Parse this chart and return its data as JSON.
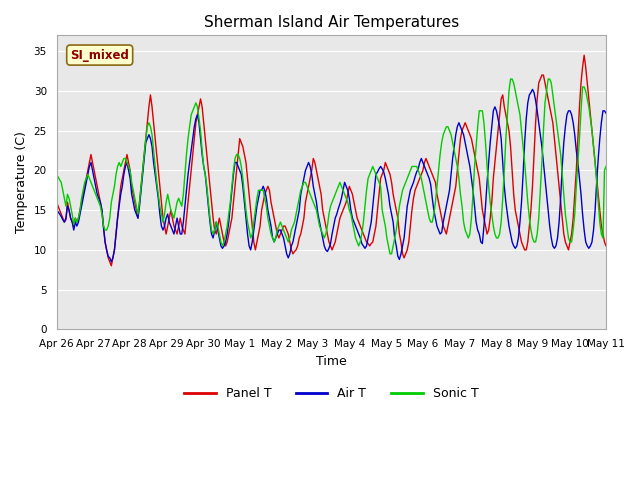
{
  "title": "Sherman Island Air Temperatures",
  "xlabel": "Time",
  "ylabel": "Temperature (C)",
  "ylim": [
    0,
    37
  ],
  "yticks": [
    0,
    5,
    10,
    15,
    20,
    25,
    30,
    35
  ],
  "x_labels": [
    "Apr 26",
    "Apr 27",
    "Apr 28",
    "Apr 29",
    "Apr 30",
    "May 1",
    "May 2",
    "May 3",
    "May 4",
    "May 5",
    "May 6",
    "May 7",
    "May 8",
    "May 9",
    "May 10",
    "May 11"
  ],
  "label_box_text": "SI_mixed",
  "legend_entries": [
    "Panel T",
    "Air T",
    "Sonic T"
  ],
  "colors": {
    "panel_t": "#dd0000",
    "air_t": "#0000cc",
    "sonic_t": "#00cc00",
    "axes_bg": "#e8e8e8",
    "fig_bg": "#ffffff",
    "grid": "#ffffff"
  },
  "panel_t_data": [
    16,
    15.5,
    15,
    14.5,
    14,
    13.5,
    13.8,
    16,
    15,
    14,
    13.5,
    13,
    14,
    13.5,
    14,
    15,
    16,
    17,
    18,
    19,
    20,
    21,
    22,
    21,
    20,
    19,
    18,
    17,
    16,
    15,
    13,
    11,
    10,
    9,
    8.5,
    8,
    9,
    10,
    12,
    14,
    16,
    18,
    19,
    20,
    21,
    22,
    21,
    20,
    18,
    17,
    16,
    15,
    14,
    16,
    18,
    20,
    22,
    24,
    26,
    28,
    29.5,
    28,
    26,
    24,
    22,
    20,
    18,
    16,
    14,
    13,
    12,
    13,
    14,
    15,
    14,
    13,
    12.5,
    12,
    13,
    14,
    13,
    12.5,
    12,
    14,
    16,
    18,
    20,
    22,
    24,
    26,
    27,
    28,
    29,
    28,
    26,
    24,
    22,
    20,
    18,
    16,
    14,
    12.5,
    12,
    13,
    14,
    13,
    12,
    11,
    10.5,
    11,
    12,
    13,
    14,
    16,
    18,
    20,
    22,
    24,
    23.5,
    23,
    22,
    21,
    19,
    17,
    15,
    13,
    11,
    10,
    11,
    12,
    13,
    15,
    16,
    17,
    17.5,
    18,
    17.5,
    16,
    15,
    14,
    13,
    12,
    11.5,
    12,
    12.5,
    13,
    13,
    12.5,
    12,
    11,
    10,
    9.5,
    9.8,
    10,
    10.5,
    11.5,
    12,
    13,
    14,
    16,
    17,
    18,
    19,
    20,
    21.5,
    21,
    20,
    19,
    18,
    17,
    15,
    14,
    13,
    12,
    11,
    10.5,
    10,
    10.5,
    11,
    12,
    13,
    14,
    14.5,
    15,
    15.5,
    16,
    17,
    18,
    17.5,
    17,
    16,
    15,
    14,
    13.5,
    13,
    12.5,
    12,
    11.5,
    11,
    10.8,
    10.5,
    10.8,
    11,
    12,
    13,
    15,
    17,
    19,
    19.5,
    20,
    21,
    20.5,
    20,
    19.5,
    18.5,
    17,
    16,
    15,
    14,
    12,
    11,
    9.5,
    9,
    9.5,
    10,
    11,
    13,
    15,
    16.5,
    17.5,
    18,
    18.5,
    19,
    19.5,
    20,
    21,
    21.5,
    21,
    20.5,
    20,
    19.5,
    19,
    18.5,
    17,
    16,
    15,
    14,
    13,
    12.5,
    12,
    13,
    14,
    15,
    16,
    17,
    18,
    20,
    22,
    24,
    25,
    25.5,
    26,
    25.5,
    25,
    24.5,
    24,
    23,
    22,
    21,
    20,
    19,
    17,
    15,
    14,
    13,
    12,
    12.5,
    14,
    16,
    19,
    21,
    23,
    25,
    27,
    29,
    29.5,
    28,
    27,
    26,
    25,
    23,
    20,
    17,
    15,
    14,
    13,
    12,
    11,
    10.5,
    10,
    10,
    11,
    13,
    15,
    18,
    22,
    26,
    29,
    31,
    31.5,
    32,
    32,
    31,
    30,
    29,
    28,
    27,
    26,
    24,
    22,
    20,
    18,
    16,
    14,
    12,
    11,
    10.5,
    10,
    11,
    12,
    14,
    17,
    20,
    24,
    28,
    31,
    33,
    34.5,
    33,
    31,
    29,
    27,
    25,
    23,
    21,
    19,
    17,
    15,
    13,
    12,
    11,
    10.5,
    10.5,
    11,
    13,
    16,
    20,
    24,
    27,
    29,
    30,
    30,
    29.5,
    28.5,
    27,
    25,
    23,
    21,
    19,
    17,
    14,
    12,
    11,
    10,
    10
  ],
  "air_t_data": [
    15,
    14.8,
    14.5,
    14.2,
    13.8,
    13.5,
    14,
    15.5,
    15,
    14,
    13.5,
    12.5,
    13.5,
    13,
    13.5,
    14.5,
    15.5,
    16.5,
    17.5,
    18.5,
    19.5,
    20.5,
    21,
    20,
    19,
    18,
    17,
    16.5,
    16,
    15,
    12.8,
    11,
    10,
    9.2,
    9,
    8.5,
    9,
    10,
    12,
    14,
    15.5,
    17,
    18,
    19.5,
    20.5,
    21,
    20,
    19,
    17,
    16,
    15,
    14.5,
    14,
    15.5,
    17.5,
    19.5,
    21.5,
    23.5,
    24,
    24.5,
    24,
    23,
    21,
    19.5,
    18,
    16.5,
    14.5,
    13,
    12.5,
    13,
    14,
    14.5,
    13.5,
    13,
    12.5,
    12,
    13,
    14,
    13,
    12,
    12,
    13.5,
    15.5,
    17.5,
    19.5,
    21,
    22.5,
    24,
    25.5,
    26.5,
    27,
    26,
    24,
    22,
    20.5,
    19.5,
    17.5,
    15.5,
    13.5,
    12,
    11.5,
    12.5,
    13.5,
    12.5,
    11.5,
    10.5,
    10.2,
    10.5,
    11,
    12,
    13.5,
    15.5,
    17.5,
    19.5,
    21,
    21,
    20.5,
    20,
    19.5,
    18,
    16,
    14,
    12,
    10.5,
    10,
    11,
    12.5,
    14,
    15.5,
    16.5,
    17.5,
    17.5,
    18,
    17.5,
    16.5,
    15,
    14,
    13,
    11.5,
    11,
    11.5,
    12,
    12.5,
    12.5,
    12,
    11.5,
    10.5,
    9.5,
    9,
    9.5,
    10.5,
    11,
    12,
    13,
    14,
    15,
    17,
    18,
    19,
    20,
    20.5,
    21,
    20.5,
    19.5,
    18,
    17,
    16,
    14.5,
    13.5,
    12.5,
    11.5,
    10.5,
    10,
    9.8,
    10.2,
    10.8,
    12,
    13,
    14,
    14.5,
    15.2,
    15.8,
    16.5,
    17.5,
    18.5,
    18,
    17.5,
    16.5,
    15,
    14,
    13.5,
    13,
    12.5,
    12,
    11.5,
    10.8,
    10.5,
    10.2,
    10.5,
    11.5,
    12.5,
    13.5,
    15.5,
    17.5,
    19.5,
    19.8,
    20.2,
    20.5,
    20.2,
    19.8,
    19,
    18,
    17,
    15.5,
    14.5,
    13.5,
    11.5,
    10.5,
    9.2,
    8.8,
    9.5,
    10.5,
    11.5,
    13.5,
    15.5,
    16.5,
    17.5,
    18,
    18.5,
    19.2,
    19.8,
    20.2,
    21,
    21.5,
    21,
    20.5,
    20,
    19.5,
    19,
    18.2,
    16.5,
    15,
    14,
    13,
    12.5,
    12,
    12.2,
    13.5,
    14.5,
    15.5,
    16.5,
    17.5,
    19.5,
    21.5,
    23,
    24.5,
    25.5,
    26,
    25.5,
    25,
    24.5,
    23.5,
    22.5,
    21.5,
    20.5,
    19,
    17.5,
    15.5,
    13.5,
    12.5,
    12,
    11,
    10.8,
    13,
    15.5,
    18.5,
    21,
    23.5,
    25.5,
    27.5,
    28,
    27.5,
    26.5,
    25.5,
    24,
    21,
    18,
    16,
    14.5,
    13,
    12,
    11,
    10.5,
    10.2,
    10.5,
    11.5,
    13.5,
    16,
    19.5,
    23.5,
    26.5,
    28.5,
    29.5,
    29.8,
    30.2,
    29.8,
    28.8,
    27.5,
    26,
    24.5,
    23,
    21,
    19,
    17,
    15,
    13,
    11.5,
    10.5,
    10.2,
    10.5,
    11.5,
    13.5,
    16.5,
    20.5,
    23.5,
    25.5,
    27,
    27.5,
    27.5,
    27,
    26,
    24.5,
    22.5,
    21,
    19,
    17,
    14.5,
    12.5,
    11,
    10.5,
    10.2,
    10.5,
    11,
    12.5,
    15,
    18.5,
    21.5,
    24,
    26,
    27.5,
    27.5,
    27.2,
    26.5,
    25,
    23,
    21,
    19,
    17,
    14.5,
    12.5,
    11,
    10.5,
    10.5
  ],
  "sonic_t_data": [
    19,
    19.2,
    18.8,
    18.5,
    17.5,
    16.5,
    15.5,
    17,
    16.5,
    15.5,
    14.5,
    13.2,
    14,
    13.5,
    14,
    15,
    16.5,
    17.5,
    18.5,
    19,
    19.5,
    19,
    18.5,
    18,
    17.5,
    17,
    16.5,
    16,
    15.5,
    14.5,
    13,
    12.5,
    12.5,
    13,
    14,
    16,
    17,
    18,
    19.5,
    20.5,
    21,
    20.5,
    21,
    21.5,
    21.5,
    21,
    20.5,
    20,
    18.5,
    17.5,
    16.5,
    15.5,
    14.5,
    16,
    18,
    20,
    22,
    24,
    25.5,
    26,
    25.5,
    24.5,
    22.5,
    20.5,
    18.5,
    17,
    15.5,
    14.5,
    13.5,
    14.5,
    16,
    17,
    16,
    15,
    14.5,
    14,
    15,
    16,
    16.5,
    16,
    15.5,
    17,
    19.5,
    22,
    24,
    25.5,
    27,
    27.5,
    28,
    28.5,
    28,
    26.5,
    25,
    22.5,
    20.5,
    19.5,
    18,
    16,
    14,
    12.5,
    12,
    12.5,
    13.5,
    13,
    12,
    11,
    10.5,
    11,
    12,
    13,
    14.5,
    16,
    18,
    20,
    21.5,
    22,
    22,
    21.5,
    20.5,
    19,
    17,
    15,
    13.5,
    12.5,
    11.5,
    12,
    13.5,
    15,
    16.5,
    17.5,
    17.5,
    17.5,
    17.5,
    16.5,
    15.5,
    14,
    13,
    12,
    11.5,
    11,
    11.5,
    12.5,
    13,
    13.5,
    13,
    12.5,
    12,
    11.5,
    11,
    11.5,
    12.5,
    13,
    13.5,
    14.5,
    15.5,
    16.5,
    17.5,
    18,
    18.5,
    18.5,
    18,
    17.5,
    17,
    16.5,
    16,
    15.5,
    15,
    14,
    13,
    12.5,
    12,
    11.5,
    12,
    13,
    14.5,
    15.5,
    16,
    16.5,
    17,
    17.5,
    18,
    18.5,
    18,
    17.5,
    17,
    16.5,
    16,
    15,
    14.5,
    13.5,
    12.5,
    11.5,
    11,
    10.5,
    11,
    12,
    13.5,
    15.5,
    17.5,
    19,
    19.5,
    20,
    20.5,
    20,
    19.5,
    19,
    18.5,
    18,
    15,
    14,
    13,
    11.5,
    10.5,
    9.5,
    9.5,
    10.5,
    11.5,
    12.5,
    14,
    15.5,
    16.5,
    17.5,
    18,
    18.5,
    19,
    19.5,
    20,
    20.5,
    20.5,
    20.5,
    20.5,
    20,
    19.5,
    19,
    18,
    17,
    16,
    15,
    14,
    13.5,
    13.5,
    14.5,
    16,
    18,
    20,
    22,
    23.5,
    24.5,
    25,
    25.5,
    25.5,
    25,
    24.5,
    23.5,
    22.5,
    21.5,
    20.5,
    19,
    17,
    15.5,
    13.5,
    12.5,
    12,
    11.5,
    12,
    14,
    17,
    20.5,
    23,
    25.5,
    27.5,
    27.5,
    27.5,
    26,
    23.5,
    20.5,
    18,
    16,
    14.5,
    13,
    12,
    11.5,
    11.5,
    12,
    13.5,
    16.5,
    20,
    24,
    27,
    30,
    31.5,
    31.5,
    31,
    30,
    29,
    28,
    27,
    25,
    23,
    21,
    18.5,
    16,
    14,
    12.5,
    11.5,
    11,
    11,
    12,
    14,
    17.5,
    21,
    25,
    28.5,
    30,
    31.5,
    31.5,
    31,
    29.5,
    28,
    26.5,
    25,
    23.5,
    22,
    19.5,
    17,
    14.5,
    13,
    11.5,
    11,
    11,
    12.5,
    14.5,
    18,
    21,
    24,
    27.5,
    30.5,
    30.5,
    30,
    29,
    28,
    26.5,
    25,
    23,
    21,
    18.5,
    16,
    13.5,
    12,
    11.5,
    20,
    20.5
  ],
  "figsize": [
    6.4,
    4.8
  ],
  "dpi": 100
}
